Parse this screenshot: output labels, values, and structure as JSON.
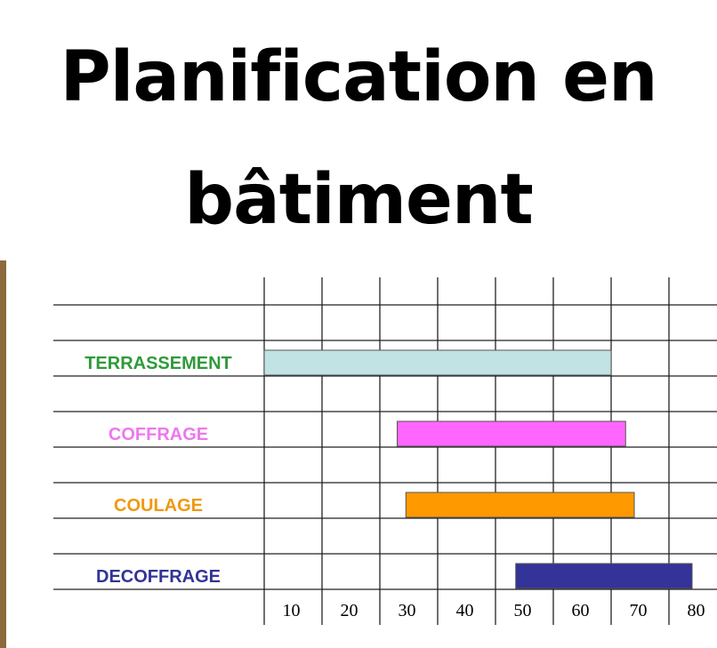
{
  "title": "Planification en\nbâtiment",
  "chart_data": {
    "type": "bar",
    "orientation": "horizontal",
    "title": "Planification en bâtiment",
    "xlabel": "",
    "ylabel": "",
    "xlim": [
      5,
      85
    ],
    "x_ticks": [
      10,
      20,
      30,
      40,
      50,
      60,
      70,
      80
    ],
    "grid": true,
    "series": [
      {
        "name": "TERRASSEMENT",
        "start": 5,
        "end": 65,
        "color": "#c1e3e3",
        "label_color": "#2f9a3a"
      },
      {
        "name": "COFFRAGE",
        "start": 28,
        "end": 67.5,
        "color": "#ff66ff",
        "label_color": "#ee77ee"
      },
      {
        "name": "COULAGE",
        "start": 29.5,
        "end": 69,
        "color": "#ff9900",
        "label_color": "#ee9911"
      },
      {
        "name": "DECOFFRAGE",
        "start": 48.5,
        "end": 79,
        "color": "#333399",
        "label_color": "#333399"
      }
    ]
  }
}
